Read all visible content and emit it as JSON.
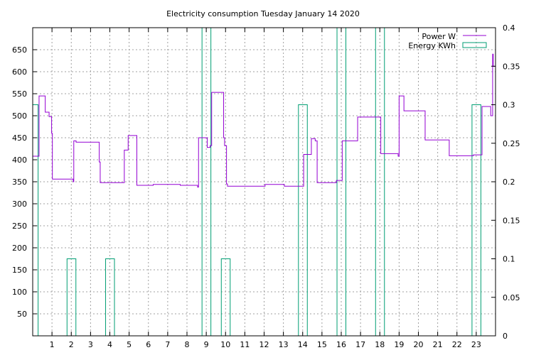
{
  "chart_data": {
    "type": "line",
    "title": "Electricity consumption Tuesday January 14 2020",
    "xlabel": "",
    "ylabel": "",
    "y2label": "",
    "xlim": [
      0,
      24
    ],
    "ylim": [
      0,
      700
    ],
    "y2lim": [
      0,
      0.4
    ],
    "grid": true,
    "legend_position": "top-right",
    "colors": {
      "power": "#9400d3",
      "energy": "#009e73",
      "grid": "#a0a0a0",
      "axis": "#000000"
    },
    "x_ticks": [
      1,
      2,
      3,
      4,
      5,
      6,
      7,
      8,
      9,
      10,
      11,
      12,
      13,
      14,
      15,
      16,
      17,
      18,
      19,
      20,
      21,
      22,
      23
    ],
    "y_ticks": [
      50,
      100,
      150,
      200,
      250,
      300,
      350,
      400,
      450,
      500,
      550,
      600,
      650
    ],
    "y2_ticks": [
      0,
      0.05,
      0.1,
      0.15,
      0.2,
      0.25,
      0.3,
      0.35,
      0.4
    ],
    "y2_tick_labels": [
      "0",
      "0.05",
      "0.1",
      "0.15",
      "0.2",
      "0.25",
      "0.3",
      "0.35",
      "0.4"
    ],
    "series": [
      {
        "name": "Power W",
        "axis": "y",
        "kind": "step-line",
        "points": [
          [
            0.0,
            408
          ],
          [
            0.33,
            408
          ],
          [
            0.33,
            545
          ],
          [
            0.65,
            545
          ],
          [
            0.65,
            508
          ],
          [
            0.85,
            508
          ],
          [
            0.85,
            498
          ],
          [
            0.98,
            498
          ],
          [
            0.98,
            460
          ],
          [
            1.02,
            460
          ],
          [
            1.02,
            356
          ],
          [
            2.1,
            356
          ],
          [
            2.1,
            350
          ],
          [
            2.13,
            350
          ],
          [
            2.13,
            443
          ],
          [
            2.25,
            443
          ],
          [
            2.25,
            440
          ],
          [
            3.45,
            440
          ],
          [
            3.45,
            395
          ],
          [
            3.5,
            395
          ],
          [
            3.5,
            348
          ],
          [
            4.75,
            348
          ],
          [
            4.75,
            422
          ],
          [
            4.95,
            422
          ],
          [
            4.95,
            455
          ],
          [
            5.4,
            455
          ],
          [
            5.4,
            342
          ],
          [
            6.25,
            342
          ],
          [
            6.25,
            344
          ],
          [
            7.65,
            344
          ],
          [
            7.65,
            342
          ],
          [
            8.55,
            342
          ],
          [
            8.55,
            338
          ],
          [
            8.6,
            338
          ],
          [
            8.6,
            450
          ],
          [
            9.05,
            450
          ],
          [
            9.05,
            428
          ],
          [
            9.2,
            428
          ],
          [
            9.2,
            432
          ],
          [
            9.28,
            432
          ],
          [
            9.28,
            553
          ],
          [
            9.9,
            553
          ],
          [
            9.9,
            450
          ],
          [
            9.95,
            450
          ],
          [
            9.95,
            432
          ],
          [
            10.05,
            432
          ],
          [
            10.05,
            345
          ],
          [
            10.1,
            345
          ],
          [
            10.1,
            340
          ],
          [
            12.05,
            340
          ],
          [
            12.05,
            344
          ],
          [
            13.05,
            344
          ],
          [
            13.05,
            340
          ],
          [
            14.05,
            340
          ],
          [
            14.05,
            412
          ],
          [
            14.45,
            412
          ],
          [
            14.45,
            448
          ],
          [
            14.65,
            448
          ],
          [
            14.65,
            443
          ],
          [
            14.75,
            443
          ],
          [
            14.75,
            348
          ],
          [
            15.75,
            348
          ],
          [
            15.75,
            353
          ],
          [
            16.05,
            353
          ],
          [
            16.05,
            443
          ],
          [
            16.85,
            443
          ],
          [
            16.85,
            497
          ],
          [
            18.05,
            497
          ],
          [
            18.05,
            414
          ],
          [
            18.95,
            414
          ],
          [
            18.95,
            408
          ],
          [
            19.0,
            408
          ],
          [
            19.0,
            545
          ],
          [
            19.25,
            545
          ],
          [
            19.25,
            511
          ],
          [
            20.35,
            511
          ],
          [
            20.35,
            445
          ],
          [
            21.6,
            445
          ],
          [
            21.6,
            409
          ],
          [
            22.85,
            409
          ],
          [
            22.85,
            411
          ],
          [
            23.3,
            411
          ],
          [
            23.3,
            521
          ],
          [
            23.75,
            521
          ],
          [
            23.75,
            500
          ],
          [
            23.85,
            500
          ],
          [
            23.85,
            640
          ],
          [
            23.88,
            640
          ],
          [
            23.88,
            612
          ],
          [
            24.0,
            612
          ]
        ]
      },
      {
        "name": "Energy KWh",
        "axis": "y2",
        "kind": "impulse-boxes",
        "bars": [
          {
            "x": 0.0,
            "width": 0.28,
            "value": 0.3
          },
          {
            "x": 1.78,
            "width": 0.46,
            "value": 0.1
          },
          {
            "x": 3.78,
            "width": 0.46,
            "value": 0.1
          },
          {
            "x": 8.78,
            "width": 0.46,
            "value": 0.4
          },
          {
            "x": 9.78,
            "width": 0.46,
            "value": 0.1
          },
          {
            "x": 13.78,
            "width": 0.46,
            "value": 0.3
          },
          {
            "x": 15.78,
            "width": 0.46,
            "value": 0.4
          },
          {
            "x": 17.78,
            "width": 0.46,
            "value": 0.4
          },
          {
            "x": 22.78,
            "width": 0.46,
            "value": 0.3
          }
        ]
      }
    ]
  }
}
